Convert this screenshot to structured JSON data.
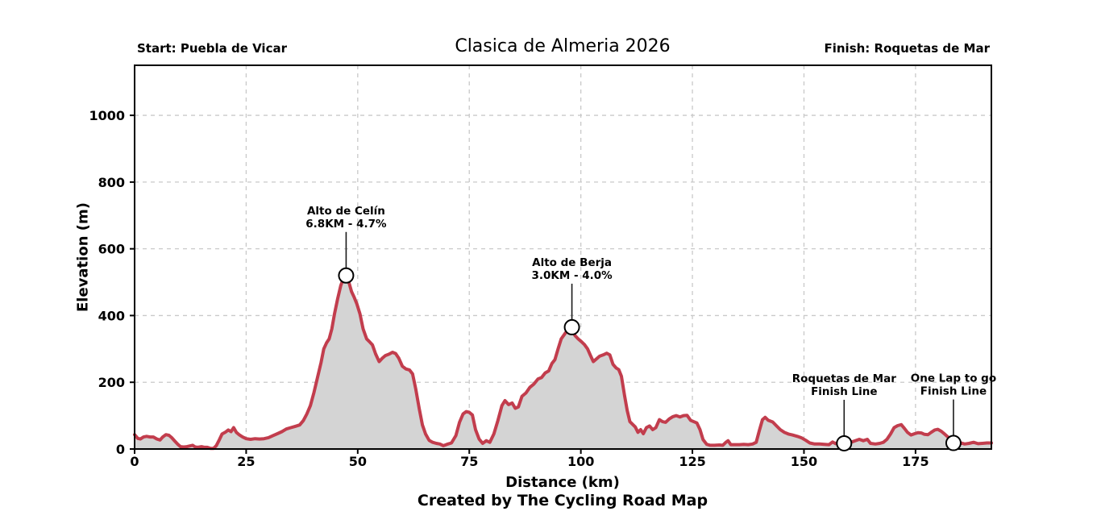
{
  "header": {
    "start_label": "Start: Puebla de Vicar",
    "title": "Clasica de Almeria 2026",
    "finish_label": "Finish: Roquetas de Mar"
  },
  "footer": {
    "credit": "Created by The Cycling Road Map"
  },
  "chart_data": {
    "type": "area",
    "title": "Clasica de Almeria 2026",
    "xlabel": "Distance (km)",
    "ylabel": "Elevation (m)",
    "xlim": [
      0,
      192
    ],
    "ylim": [
      0,
      1150
    ],
    "x_ticks": [
      0,
      25,
      50,
      75,
      100,
      125,
      150,
      175
    ],
    "y_ticks": [
      0,
      200,
      400,
      600,
      800,
      1000
    ],
    "grid": true,
    "legend": "none",
    "line_color": "#c23d4d",
    "fill_color": "#d4d4d4",
    "grid_color": "#c9c9c9",
    "marker_fill": "#ffffff",
    "marker_edge": "#000000",
    "markers": [
      {
        "name": "Alto de Celín",
        "detail": "6.8KM - 4.7%",
        "km": 47.4,
        "elevation": 520
      },
      {
        "name": "Alto de Berja",
        "detail": "3.0KM - 4.0%",
        "km": 98.0,
        "elevation": 365
      },
      {
        "name": "Roquetas de Mar",
        "detail": "Finish Line",
        "km": 159.0,
        "elevation": 17
      },
      {
        "name": "One Lap to go",
        "detail": "Finish Line",
        "km": 183.5,
        "elevation": 18
      }
    ],
    "profile": [
      [
        0,
        43
      ],
      [
        0.7,
        32
      ],
      [
        1.3,
        30
      ],
      [
        2,
        36
      ],
      [
        2.7,
        38
      ],
      [
        3.5,
        36
      ],
      [
        4.2,
        36
      ],
      [
        5,
        30
      ],
      [
        5.7,
        27
      ],
      [
        6.3,
        36
      ],
      [
        7,
        43
      ],
      [
        7.7,
        41
      ],
      [
        8.3,
        34
      ],
      [
        9,
        24
      ],
      [
        9.7,
        14
      ],
      [
        10.3,
        7
      ],
      [
        11,
        6
      ],
      [
        11.7,
        7
      ],
      [
        12.3,
        9
      ],
      [
        13,
        11
      ],
      [
        13.6,
        6
      ],
      [
        14.2,
        5
      ],
      [
        15,
        7
      ],
      [
        15.7,
        5
      ],
      [
        16.3,
        5
      ],
      [
        17,
        2
      ],
      [
        17.7,
        2
      ],
      [
        18.3,
        10
      ],
      [
        19,
        28
      ],
      [
        19.6,
        45
      ],
      [
        20.3,
        50
      ],
      [
        21,
        57
      ],
      [
        21.6,
        52
      ],
      [
        22.2,
        64
      ],
      [
        22.8,
        50
      ],
      [
        23.5,
        42
      ],
      [
        24.2,
        36
      ],
      [
        25,
        31
      ],
      [
        26,
        29
      ],
      [
        27,
        31
      ],
      [
        28,
        30
      ],
      [
        29,
        31
      ],
      [
        30,
        34
      ],
      [
        31,
        40
      ],
      [
        32,
        46
      ],
      [
        33,
        52
      ],
      [
        34,
        60
      ],
      [
        35,
        64
      ],
      [
        36,
        68
      ],
      [
        37,
        72
      ],
      [
        37.8,
        85
      ],
      [
        38.6,
        105
      ],
      [
        39.4,
        130
      ],
      [
        40.2,
        170
      ],
      [
        41,
        215
      ],
      [
        41.8,
        260
      ],
      [
        42.4,
        300
      ],
      [
        43,
        318
      ],
      [
        43.6,
        330
      ],
      [
        44.2,
        360
      ],
      [
        44.8,
        405
      ],
      [
        45.5,
        450
      ],
      [
        46.2,
        490
      ],
      [
        46.9,
        515
      ],
      [
        47.4,
        520
      ],
      [
        48,
        500
      ],
      [
        48.6,
        472
      ],
      [
        49.2,
        455
      ],
      [
        49.8,
        435
      ],
      [
        50.5,
        405
      ],
      [
        51.2,
        360
      ],
      [
        52,
        330
      ],
      [
        52.6,
        322
      ],
      [
        53.3,
        312
      ],
      [
        54,
        285
      ],
      [
        54.8,
        262
      ],
      [
        55.5,
        272
      ],
      [
        56.2,
        280
      ],
      [
        57,
        284
      ],
      [
        57.8,
        290
      ],
      [
        58.5,
        286
      ],
      [
        59.2,
        272
      ],
      [
        60,
        248
      ],
      [
        60.8,
        240
      ],
      [
        61.6,
        237
      ],
      [
        62.3,
        225
      ],
      [
        63,
        180
      ],
      [
        63.8,
        120
      ],
      [
        64.5,
        72
      ],
      [
        65.2,
        45
      ],
      [
        66,
        26
      ],
      [
        66.8,
        20
      ],
      [
        67.6,
        17
      ],
      [
        68.4,
        15
      ],
      [
        69.2,
        10
      ],
      [
        70,
        14
      ],
      [
        71,
        18
      ],
      [
        72,
        40
      ],
      [
        72.8,
        80
      ],
      [
        73.6,
        105
      ],
      [
        74.3,
        112
      ],
      [
        75,
        110
      ],
      [
        75.7,
        102
      ],
      [
        76.4,
        58
      ],
      [
        77.2,
        30
      ],
      [
        78,
        17
      ],
      [
        78.8,
        25
      ],
      [
        79.6,
        20
      ],
      [
        80.5,
        45
      ],
      [
        81.4,
        85
      ],
      [
        82.3,
        130
      ],
      [
        83,
        145
      ],
      [
        83.8,
        133
      ],
      [
        84.6,
        138
      ],
      [
        85.3,
        122
      ],
      [
        86,
        126
      ],
      [
        86.8,
        158
      ],
      [
        87.7,
        168
      ],
      [
        88.6,
        185
      ],
      [
        89.5,
        195
      ],
      [
        90.4,
        210
      ],
      [
        91.2,
        214
      ],
      [
        92,
        228
      ],
      [
        92.8,
        234
      ],
      [
        93.5,
        256
      ],
      [
        94.2,
        268
      ],
      [
        94.9,
        300
      ],
      [
        95.6,
        330
      ],
      [
        96.4,
        345
      ],
      [
        97.1,
        358
      ],
      [
        98,
        365
      ],
      [
        98.7,
        340
      ],
      [
        99.4,
        330
      ],
      [
        100.1,
        322
      ],
      [
        100.8,
        313
      ],
      [
        101.5,
        300
      ],
      [
        102.1,
        282
      ],
      [
        102.8,
        262
      ],
      [
        103.5,
        270
      ],
      [
        104.2,
        278
      ],
      [
        105,
        282
      ],
      [
        105.8,
        287
      ],
      [
        106.5,
        282
      ],
      [
        107.2,
        254
      ],
      [
        107.9,
        243
      ],
      [
        108.5,
        238
      ],
      [
        109.1,
        218
      ],
      [
        109.8,
        160
      ],
      [
        110.4,
        115
      ],
      [
        111,
        82
      ],
      [
        111.6,
        74
      ],
      [
        112.2,
        66
      ],
      [
        112.8,
        50
      ],
      [
        113.4,
        58
      ],
      [
        114,
        46
      ],
      [
        114.7,
        64
      ],
      [
        115.4,
        69
      ],
      [
        116.1,
        58
      ],
      [
        116.8,
        64
      ],
      [
        117.6,
        88
      ],
      [
        118.3,
        82
      ],
      [
        119,
        80
      ],
      [
        119.8,
        90
      ],
      [
        120.6,
        97
      ],
      [
        121.4,
        100
      ],
      [
        122.2,
        96
      ],
      [
        123,
        100
      ],
      [
        123.8,
        101
      ],
      [
        124.6,
        86
      ],
      [
        125.3,
        82
      ],
      [
        126,
        78
      ],
      [
        126.7,
        58
      ],
      [
        127.4,
        28
      ],
      [
        128.2,
        14
      ],
      [
        129,
        11
      ],
      [
        130,
        11
      ],
      [
        131,
        12
      ],
      [
        131.8,
        11
      ],
      [
        132.5,
        20
      ],
      [
        133,
        25
      ],
      [
        133.6,
        13
      ],
      [
        134.5,
        13
      ],
      [
        135.5,
        13
      ],
      [
        136.5,
        14
      ],
      [
        137.5,
        13
      ],
      [
        138.5,
        15
      ],
      [
        139.3,
        20
      ],
      [
        140,
        55
      ],
      [
        140.7,
        88
      ],
      [
        141.3,
        95
      ],
      [
        142,
        86
      ],
      [
        143,
        81
      ],
      [
        143.8,
        70
      ],
      [
        144.7,
        58
      ],
      [
        145.6,
        50
      ],
      [
        146.5,
        45
      ],
      [
        147.4,
        42
      ],
      [
        148.5,
        38
      ],
      [
        149.5,
        33
      ],
      [
        150.4,
        26
      ],
      [
        151.3,
        18
      ],
      [
        152.4,
        15
      ],
      [
        153.5,
        15
      ],
      [
        154.6,
        14
      ],
      [
        155.6,
        13
      ],
      [
        156.4,
        21
      ],
      [
        157.1,
        16
      ],
      [
        158,
        24
      ],
      [
        158.6,
        14
      ],
      [
        159.4,
        15
      ],
      [
        160.5,
        20
      ],
      [
        161.5,
        25
      ],
      [
        162.4,
        29
      ],
      [
        163.3,
        25
      ],
      [
        164.2,
        29
      ],
      [
        164.9,
        17
      ],
      [
        166,
        15
      ],
      [
        167,
        17
      ],
      [
        167.8,
        20
      ],
      [
        168.6,
        29
      ],
      [
        169.4,
        45
      ],
      [
        170.2,
        64
      ],
      [
        171,
        70
      ],
      [
        171.8,
        73
      ],
      [
        172.5,
        62
      ],
      [
        173.2,
        50
      ],
      [
        174,
        42
      ],
      [
        174.8,
        46
      ],
      [
        175.6,
        49
      ],
      [
        176.3,
        48
      ],
      [
        177,
        44
      ],
      [
        177.8,
        43
      ],
      [
        178.5,
        50
      ],
      [
        179.3,
        57
      ],
      [
        180,
        59
      ],
      [
        180.8,
        53
      ],
      [
        181.5,
        45
      ],
      [
        182.2,
        37
      ],
      [
        183,
        26
      ],
      [
        183.8,
        18
      ],
      [
        184.5,
        15
      ],
      [
        185.2,
        18
      ],
      [
        186,
        15
      ],
      [
        187,
        17
      ],
      [
        188,
        20
      ],
      [
        189,
        16
      ],
      [
        190,
        17
      ],
      [
        191,
        18
      ],
      [
        192,
        18
      ]
    ]
  }
}
